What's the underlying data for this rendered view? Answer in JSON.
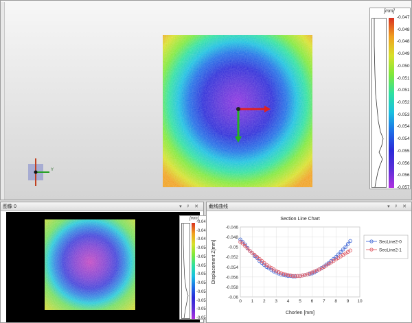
{
  "colorbar_3d": {
    "unit": "[mm]",
    "ticks": [
      "-0.047",
      "-0.048",
      "-0.048",
      "-0.049",
      "-0.050",
      "-0.051",
      "-0.051",
      "-0.052",
      "-0.053",
      "-0.054",
      "-0.054",
      "-0.055",
      "-0.056",
      "-0.056",
      "-0.057"
    ]
  },
  "triad": {
    "y_label": "Y"
  },
  "panel_image": {
    "title": "图像 0",
    "buttons": "▾ ᵖ ✕",
    "unit": "[mm]",
    "ticks": [
      "-0.047",
      "-0.048",
      "-0.049",
      "-0.050",
      "-0.051",
      "-0.052",
      "-0.053",
      "-0.054",
      "-0.055",
      "-0.056",
      "-0.056",
      "-0.057"
    ]
  },
  "panel_section": {
    "title": "截线曲线",
    "buttons": "▾ ᵖ ✕"
  },
  "colors": {
    "series0": "#4a6fd8",
    "series1": "#e0606a",
    "arrow_x": "#e02020",
    "arrow_y": "#22b022"
  },
  "chart_data": {
    "type": "scatter",
    "title": "Section Line Chart",
    "xlabel": "Chorlen [mm]",
    "ylabel": "Displacement Z[mm]",
    "xlim": [
      0,
      10
    ],
    "ylim": [
      -0.06,
      -0.046
    ],
    "xticks": [
      "0",
      "1",
      "2",
      "3",
      "4",
      "5",
      "6",
      "7",
      "8",
      "9",
      "10"
    ],
    "yticks": [
      "-0.046",
      "-0.048",
      "-0.05",
      "-0.052",
      "-0.054",
      "-0.056",
      "-0.058",
      "-0.06"
    ],
    "grid": true,
    "legend_position": "right",
    "series": [
      {
        "name": "SecLine2-0",
        "x": [
          0.0,
          0.2,
          0.4,
          0.6,
          0.8,
          1.0,
          1.2,
          1.4,
          1.6,
          1.8,
          2.0,
          2.2,
          2.4,
          2.6,
          2.8,
          3.0,
          3.2,
          3.4,
          3.6,
          3.8,
          4.0,
          4.2,
          4.4,
          4.6,
          4.8,
          5.0,
          5.2,
          5.4,
          5.6,
          5.8,
          6.0,
          6.2,
          6.4,
          6.6,
          6.8,
          7.0,
          7.2,
          7.4,
          7.6,
          7.8,
          8.0,
          8.2,
          8.4,
          8.6,
          8.8,
          9.0,
          9.2
        ],
        "y": [
          -0.0485,
          -0.049,
          -0.0495,
          -0.0502,
          -0.0508,
          -0.0512,
          -0.0518,
          -0.0522,
          -0.0528,
          -0.0532,
          -0.0536,
          -0.054,
          -0.0543,
          -0.0546,
          -0.0549,
          -0.0551,
          -0.0553,
          -0.0555,
          -0.0556,
          -0.0557,
          -0.0558,
          -0.0558,
          -0.0559,
          -0.0559,
          -0.0558,
          -0.0558,
          -0.0557,
          -0.0556,
          -0.0555,
          -0.0554,
          -0.0553,
          -0.0551,
          -0.0548,
          -0.0545,
          -0.0542,
          -0.0539,
          -0.0535,
          -0.0532,
          -0.0528,
          -0.0524,
          -0.052,
          -0.0515,
          -0.051,
          -0.0505,
          -0.05,
          -0.0494,
          -0.0488
        ]
      },
      {
        "name": "SecLine2-1",
        "x": [
          0.0,
          0.2,
          0.4,
          0.6,
          0.8,
          1.0,
          1.2,
          1.4,
          1.6,
          1.8,
          2.0,
          2.2,
          2.4,
          2.6,
          2.8,
          3.0,
          3.2,
          3.4,
          3.6,
          3.8,
          4.0,
          4.2,
          4.4,
          4.6,
          4.8,
          5.0,
          5.2,
          5.4,
          5.6,
          5.8,
          6.0,
          6.2,
          6.4,
          6.6,
          6.8,
          7.0,
          7.2,
          7.4,
          7.6,
          7.8,
          8.0,
          8.2,
          8.4,
          8.6,
          8.8,
          9.0,
          9.2
        ],
        "y": [
          -0.049,
          -0.0493,
          -0.0498,
          -0.0503,
          -0.0508,
          -0.0512,
          -0.0516,
          -0.052,
          -0.0524,
          -0.0528,
          -0.0532,
          -0.0536,
          -0.0539,
          -0.0542,
          -0.0545,
          -0.0548,
          -0.055,
          -0.0552,
          -0.0554,
          -0.0555,
          -0.0556,
          -0.0557,
          -0.0558,
          -0.0558,
          -0.0558,
          -0.0558,
          -0.0557,
          -0.0556,
          -0.0555,
          -0.0553,
          -0.0551,
          -0.0549,
          -0.0547,
          -0.0545,
          -0.0543,
          -0.054,
          -0.0537,
          -0.0534,
          -0.0531,
          -0.0528,
          -0.0525,
          -0.0522,
          -0.0519,
          -0.0516,
          -0.0513,
          -0.051,
          -0.0507
        ]
      }
    ]
  }
}
